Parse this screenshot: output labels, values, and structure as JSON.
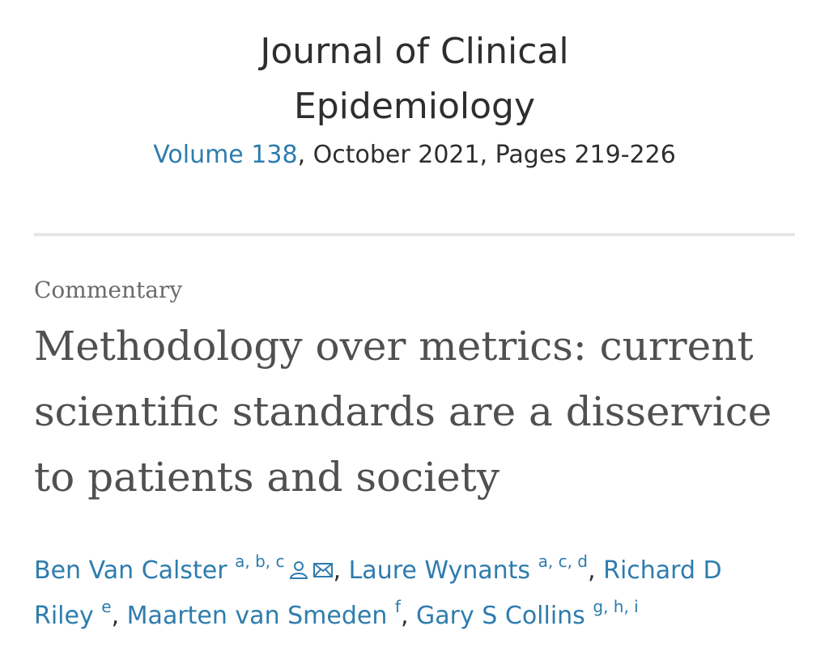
{
  "header": {
    "journal_title": "Journal of Clinical Epidemiology",
    "volume": "Volume 138",
    "issue_info": ", October 2021, Pages 219-226"
  },
  "article": {
    "type": "Commentary",
    "title": "Methodology over metrics: current scientific standards are a disservice to patients and society",
    "authors": [
      {
        "name": "Ben Van Calster",
        "affiliations": "a, b, c",
        "corresponding": true,
        "separator": ", "
      },
      {
        "name": "Laure Wynants",
        "affiliations": "a, c, d",
        "separator": ", "
      },
      {
        "name": "Richard D Riley",
        "affiliations": "e",
        "separator": ", "
      },
      {
        "name": "Maarten van Smeden",
        "affiliations": "f",
        "separator": ", "
      },
      {
        "name": "Gary S Collins",
        "affiliations": "g, h, i"
      }
    ]
  }
}
